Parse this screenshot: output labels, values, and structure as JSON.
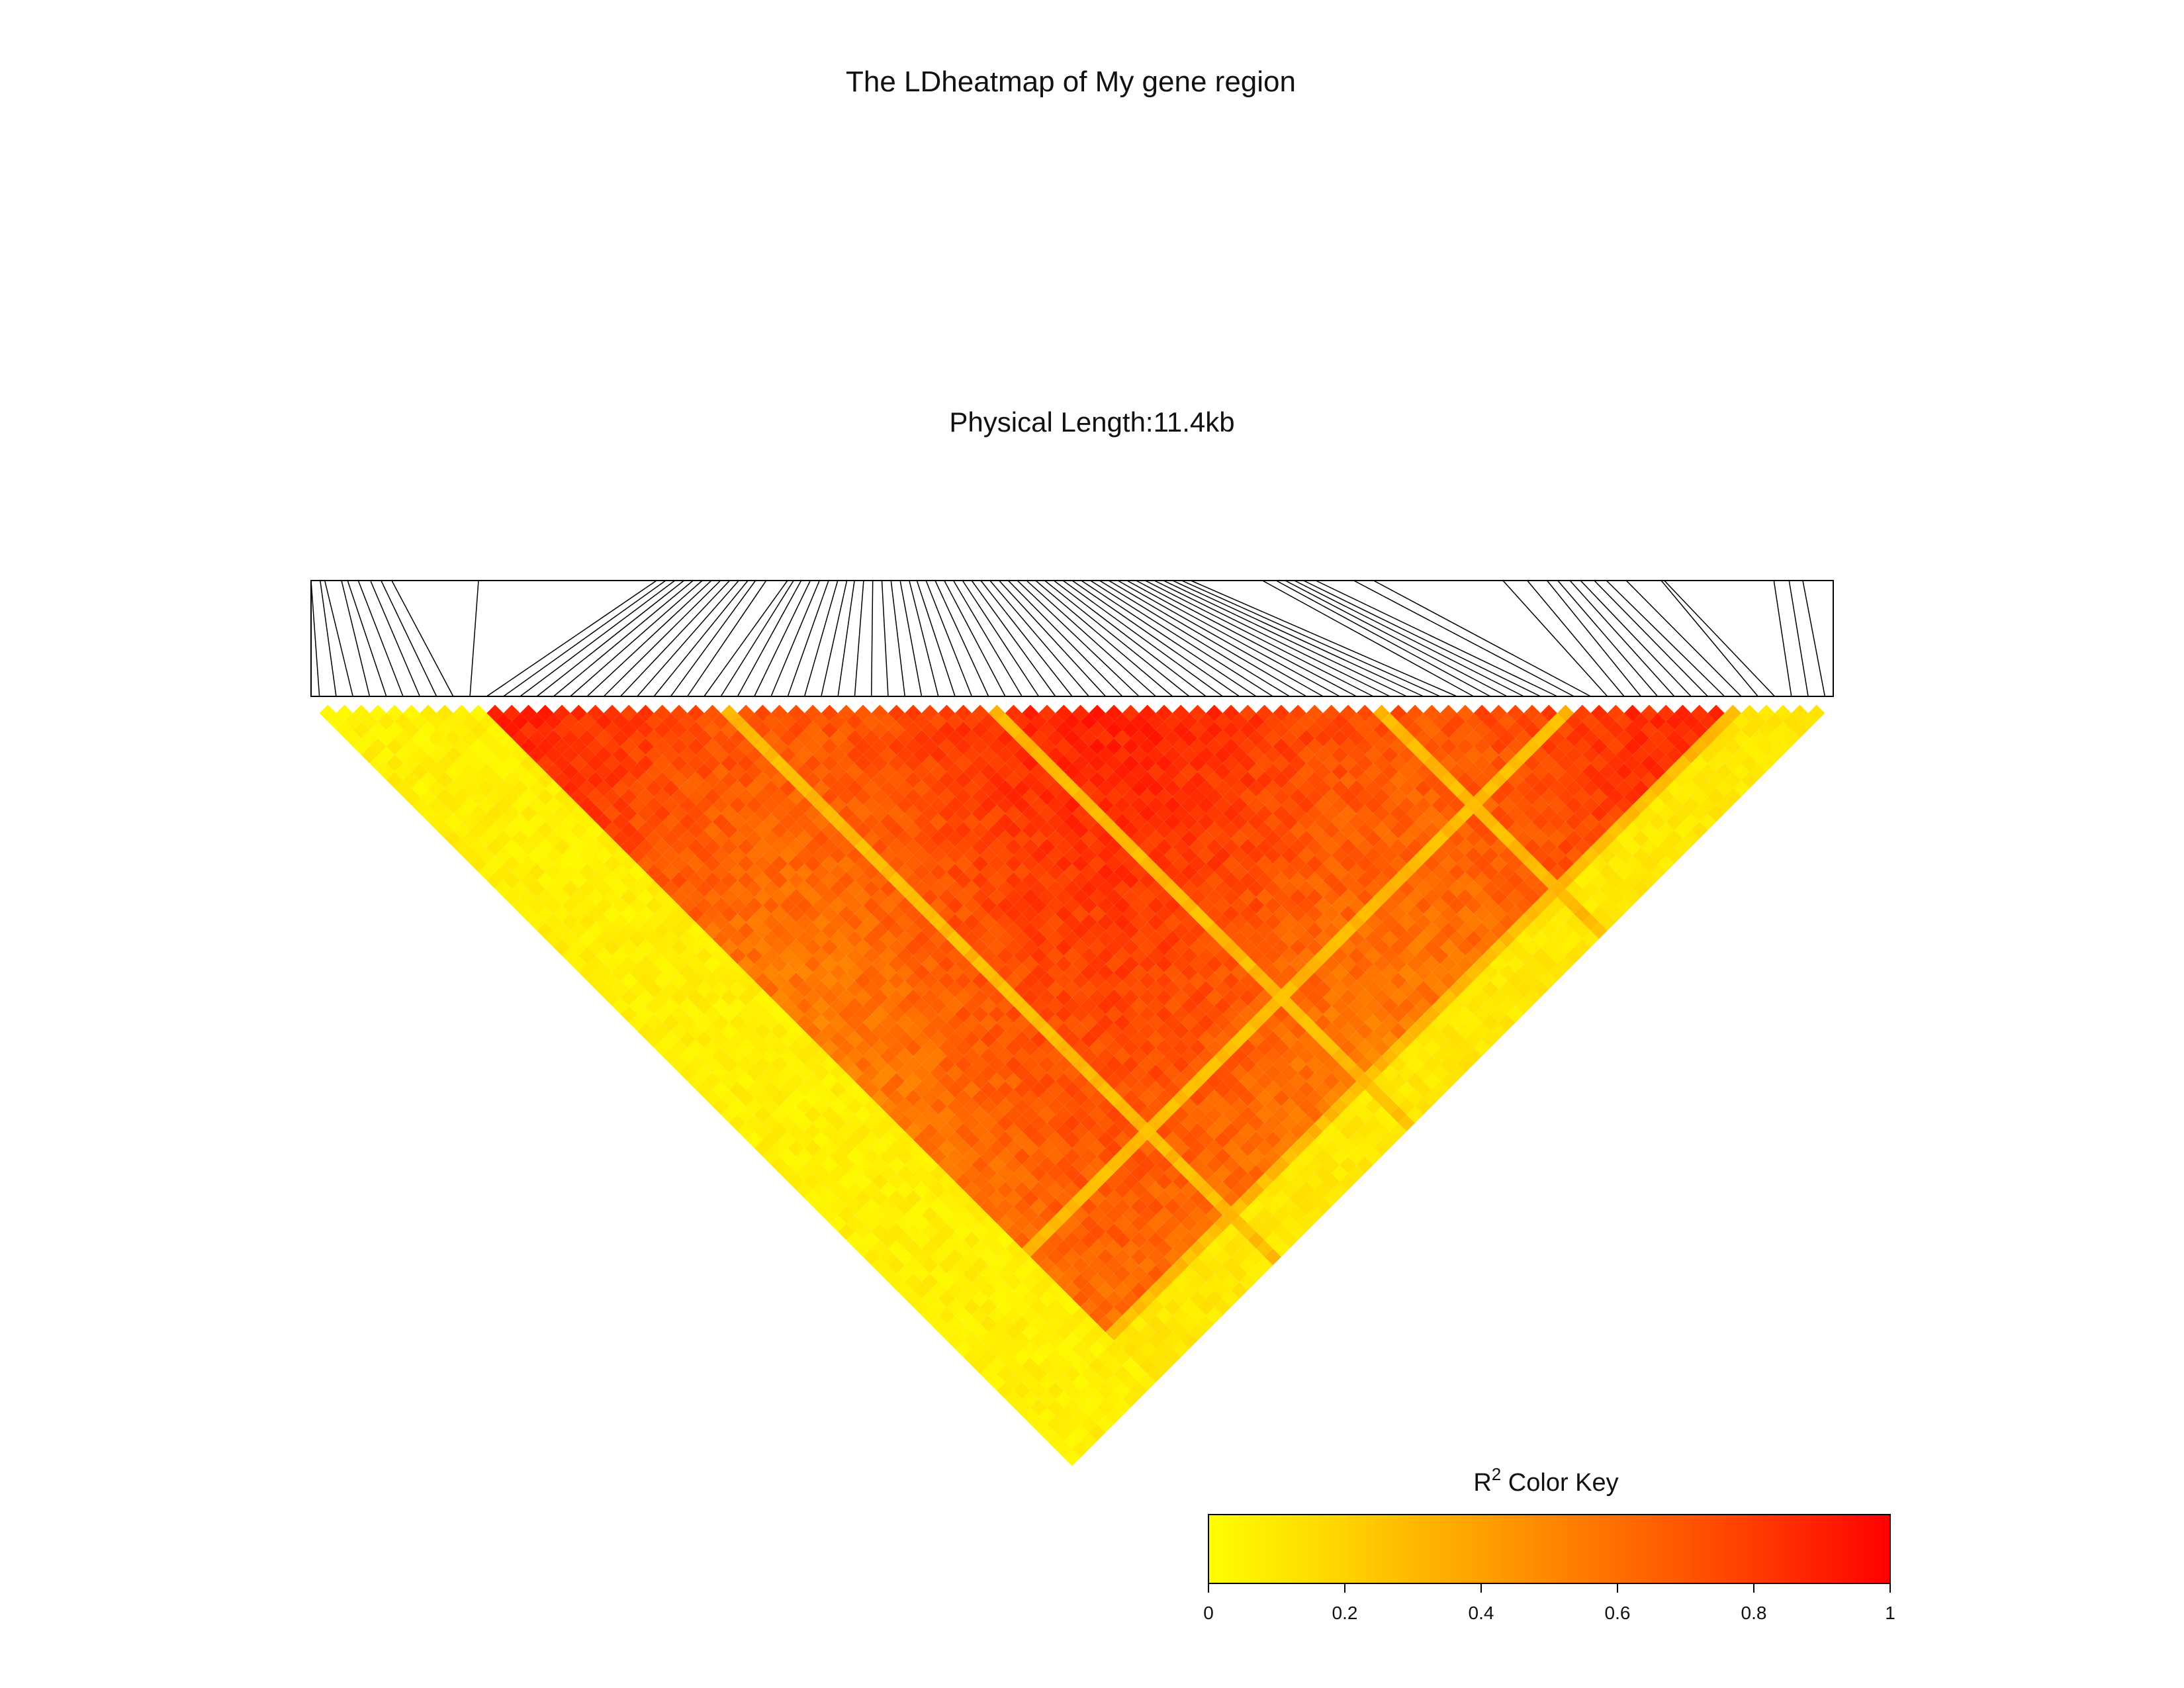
{
  "chart_data": {
    "type": "heatmap",
    "title": "The LDheatmap of My gene region",
    "subtitle": "Physical Length:11.4kb",
    "n_snps": 91,
    "color_key": {
      "title_main": "R",
      "title_sup": "2",
      "title_rest": " Color Key",
      "range": [
        0,
        1
      ],
      "ticks": [
        "0",
        "0.2",
        "0.4",
        "0.6",
        "0.8",
        "1"
      ],
      "tick_values": [
        0,
        0.2,
        0.4,
        0.6,
        0.8,
        1
      ],
      "colors": [
        "#ffff00",
        "#ffd200",
        "#ffa000",
        "#ff6e00",
        "#ff3c00",
        "#ff0000"
      ]
    },
    "snp_positions": [
      0.0,
      0.006,
      0.009,
      0.02,
      0.024,
      0.031,
      0.039,
      0.046,
      0.053,
      0.11,
      0.227,
      0.233,
      0.239,
      0.245,
      0.251,
      0.257,
      0.263,
      0.269,
      0.275,
      0.281,
      0.287,
      0.292,
      0.299,
      0.313,
      0.317,
      0.322,
      0.328,
      0.334,
      0.34,
      0.346,
      0.352,
      0.357,
      0.363,
      0.369,
      0.375,
      0.381,
      0.387,
      0.393,
      0.398,
      0.404,
      0.41,
      0.416,
      0.422,
      0.428,
      0.434,
      0.44,
      0.446,
      0.452,
      0.458,
      0.464,
      0.47,
      0.476,
      0.482,
      0.488,
      0.494,
      0.5,
      0.506,
      0.512,
      0.518,
      0.524,
      0.53,
      0.536,
      0.542,
      0.548,
      0.554,
      0.56,
      0.566,
      0.572,
      0.578,
      0.625,
      0.634,
      0.64,
      0.646,
      0.652,
      0.66,
      0.685,
      0.698,
      0.783,
      0.799,
      0.812,
      0.819,
      0.827,
      0.834,
      0.843,
      0.851,
      0.864,
      0.887,
      0.889,
      0.961,
      0.971,
      0.98
    ],
    "color_levels": [
      0.0,
      0.12,
      0.22,
      0.32,
      0.42,
      0.52,
      0.6,
      0.68,
      0.76,
      0.84,
      0.92,
      1.0
    ]
  }
}
